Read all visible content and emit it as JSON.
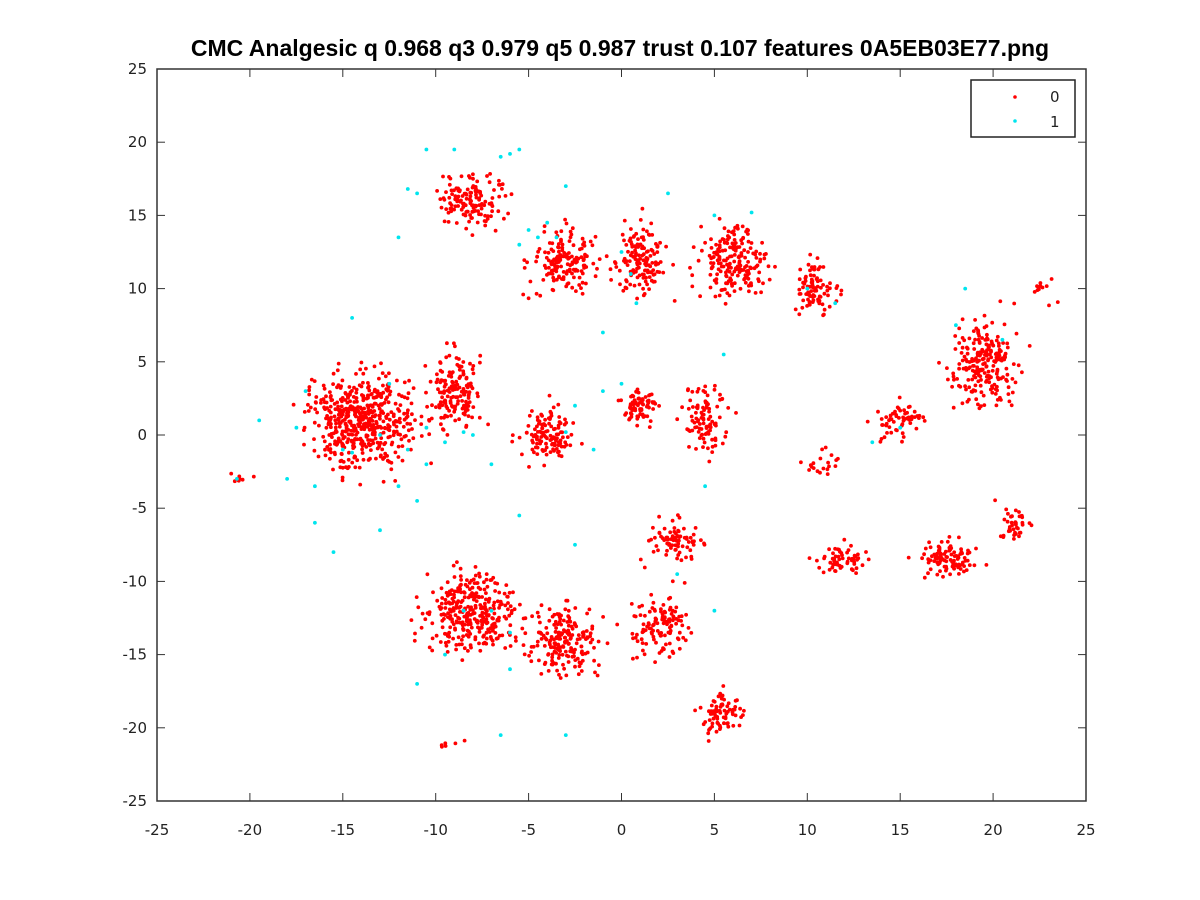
{
  "chart_data": {
    "type": "scatter",
    "title": "CMC Analgesic q 0.968 q3 0.979 q5 0.987 trust 0.107 features 0A5EB03E77.png",
    "xlabel": "",
    "ylabel": "",
    "xlim": [
      -25,
      25
    ],
    "ylim": [
      -25,
      25
    ],
    "xticks": [
      -25,
      -20,
      -15,
      -10,
      -5,
      0,
      5,
      10,
      15,
      20,
      25
    ],
    "yticks": [
      -25,
      -20,
      -15,
      -10,
      -5,
      0,
      5,
      10,
      15,
      20,
      25
    ],
    "grid": false,
    "legend_position": "top-right",
    "series": [
      {
        "name": "0",
        "color": "#ff0000",
        "clusters": [
          {
            "cx": -14,
            "cy": 1,
            "rx": 5.5,
            "ry": 6.5,
            "n": 520
          },
          {
            "cx": -9,
            "cy": 3,
            "rx": 3.0,
            "ry": 5.0,
            "n": 160
          },
          {
            "cx": -4,
            "cy": 0,
            "rx": 2.5,
            "ry": 3.5,
            "n": 120
          },
          {
            "cx": -8,
            "cy": -12,
            "rx": 5.0,
            "ry": 5.0,
            "n": 330
          },
          {
            "cx": -3,
            "cy": -14,
            "rx": 4.0,
            "ry": 4.5,
            "n": 200
          },
          {
            "cx": 2,
            "cy": -13,
            "rx": 3.0,
            "ry": 4.0,
            "n": 120
          },
          {
            "cx": 5.5,
            "cy": -19,
            "rx": 2.0,
            "ry": 3.0,
            "n": 80
          },
          {
            "cx": -8,
            "cy": 16,
            "rx": 3.5,
            "ry": 3.5,
            "n": 140
          },
          {
            "cx": -3,
            "cy": 12,
            "rx": 3.5,
            "ry": 4.0,
            "n": 160
          },
          {
            "cx": 1,
            "cy": 12,
            "rx": 2.5,
            "ry": 4.5,
            "n": 140
          },
          {
            "cx": 6,
            "cy": 12,
            "rx": 3.5,
            "ry": 4.5,
            "n": 200
          },
          {
            "cx": 10.5,
            "cy": 10,
            "rx": 2.0,
            "ry": 3.5,
            "n": 90
          },
          {
            "cx": 19.5,
            "cy": 5,
            "rx": 3.5,
            "ry": 5.5,
            "n": 230
          },
          {
            "cx": 15,
            "cy": 1,
            "rx": 2.5,
            "ry": 2.0,
            "n": 60
          },
          {
            "cx": 1,
            "cy": 2,
            "rx": 1.5,
            "ry": 2.5,
            "n": 80
          },
          {
            "cx": 4.5,
            "cy": 1,
            "rx": 2.0,
            "ry": 4.5,
            "n": 100
          },
          {
            "cx": 3,
            "cy": -7,
            "rx": 3.0,
            "ry": 2.5,
            "n": 80
          },
          {
            "cx": 12,
            "cy": -8.5,
            "rx": 2.5,
            "ry": 1.5,
            "n": 60
          },
          {
            "cx": 17.5,
            "cy": -8.5,
            "rx": 3.0,
            "ry": 2.0,
            "n": 100
          },
          {
            "cx": 21,
            "cy": -6,
            "rx": 1.5,
            "ry": 2.0,
            "n": 40
          },
          {
            "cx": -20.5,
            "cy": -3,
            "rx": 0.5,
            "ry": 0.5,
            "n": 10
          },
          {
            "cx": 22.5,
            "cy": 10,
            "rx": 0.6,
            "ry": 0.6,
            "n": 12
          },
          {
            "cx": 11,
            "cy": -2,
            "rx": 1.5,
            "ry": 1.5,
            "n": 20
          },
          {
            "cx": -9.5,
            "cy": -21.2,
            "rx": 0.6,
            "ry": 0.3,
            "n": 6
          }
        ]
      },
      {
        "name": "1",
        "color": "#00e5ee",
        "points": [
          [
            -20.7,
            -3.0
          ],
          [
            -16.5,
            -3.5
          ],
          [
            -15.0,
            -1.0
          ],
          [
            -14.5,
            -1.2
          ],
          [
            -13.0,
            0.0
          ],
          [
            -12.0,
            -3.5
          ],
          [
            -11.5,
            -1.0
          ],
          [
            -10.5,
            0.5
          ],
          [
            -9.5,
            -0.5
          ],
          [
            -8.5,
            0.2
          ],
          [
            -8.0,
            0.0
          ],
          [
            -17.0,
            3.0
          ],
          [
            -19.5,
            1.0
          ],
          [
            -13.0,
            -6.5
          ],
          [
            -11.0,
            -4.5
          ],
          [
            -10.5,
            -2.0
          ],
          [
            -14.5,
            8.0
          ],
          [
            -11.5,
            16.8
          ],
          [
            -11.0,
            16.5
          ],
          [
            -12.0,
            13.5
          ],
          [
            -10.5,
            19.5
          ],
          [
            -9.0,
            19.5
          ],
          [
            -6.5,
            19.0
          ],
          [
            -6.0,
            19.2
          ],
          [
            -5.5,
            19.5
          ],
          [
            -4.5,
            13.5
          ],
          [
            -5.0,
            14.0
          ],
          [
            -4.0,
            14.5
          ],
          [
            -3.5,
            13.5
          ],
          [
            -5.5,
            13.0
          ],
          [
            -3.0,
            17.0
          ],
          [
            0.0,
            12.5
          ],
          [
            0.5,
            11.0
          ],
          [
            0.8,
            9.0
          ],
          [
            -1.0,
            7.0
          ],
          [
            2.5,
            16.5
          ],
          [
            5.0,
            15.0
          ],
          [
            7.0,
            15.2
          ],
          [
            10.0,
            10.0
          ],
          [
            11.5,
            9.0
          ],
          [
            5.5,
            5.5
          ],
          [
            -2.5,
            2.0
          ],
          [
            -1.0,
            3.0
          ],
          [
            0.0,
            3.5
          ],
          [
            -3.0,
            0.2
          ],
          [
            -7.0,
            -2.0
          ],
          [
            -7.0,
            -12.0
          ],
          [
            -8.5,
            -12.0
          ],
          [
            -6.0,
            -13.5
          ],
          [
            -9.5,
            -15.0
          ],
          [
            -11.0,
            -17.0
          ],
          [
            -6.0,
            -16.0
          ],
          [
            -6.5,
            -20.5
          ],
          [
            -3.0,
            -20.5
          ],
          [
            3.0,
            -9.5
          ],
          [
            5.0,
            -12.0
          ],
          [
            -1.5,
            -1.0
          ],
          [
            18.5,
            10.0
          ],
          [
            18.0,
            7.5
          ],
          [
            20.5,
            6.5
          ],
          [
            15.0,
            0.5
          ],
          [
            13.5,
            -0.5
          ],
          [
            4.5,
            -3.5
          ],
          [
            -5.5,
            -5.5
          ],
          [
            -2.5,
            -7.5
          ],
          [
            -15.5,
            -8.0
          ],
          [
            -16.5,
            -6.0
          ],
          [
            -18.0,
            -3.0
          ],
          [
            -17.5,
            0.5
          ],
          [
            -12.5,
            3.5
          ]
        ]
      }
    ]
  }
}
